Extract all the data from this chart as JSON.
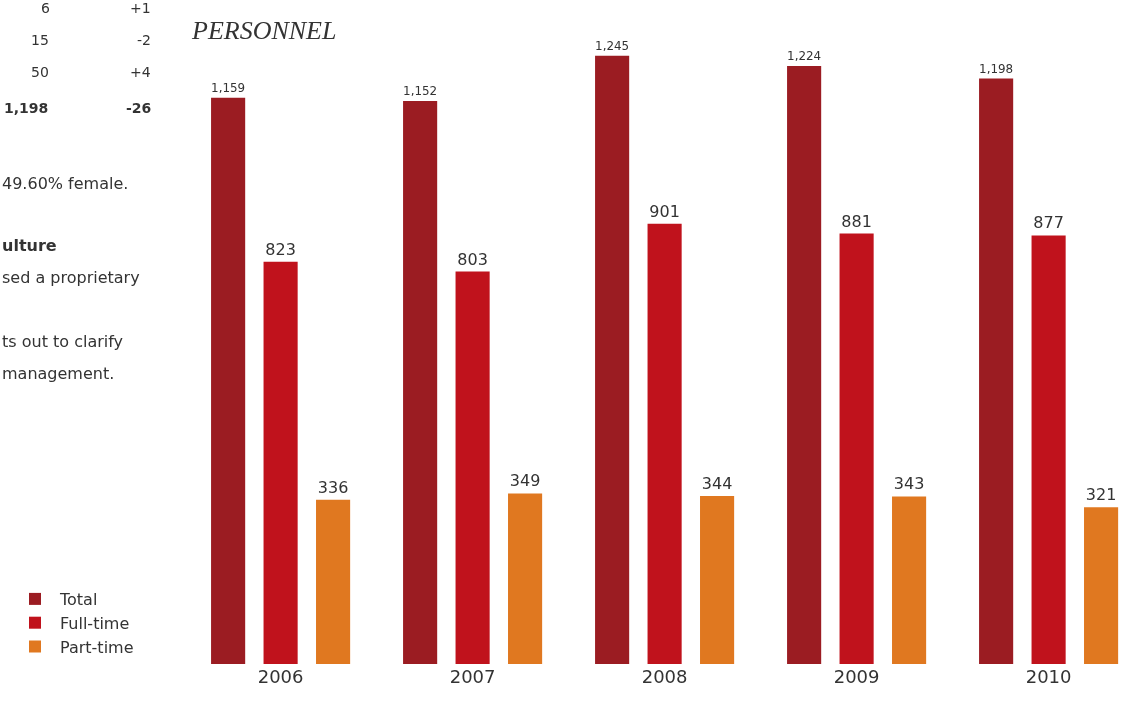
{
  "chart_data": {
    "type": "bar",
    "title": "PERSONNEL",
    "categories": [
      "2006",
      "2007",
      "2008",
      "2009",
      "2010"
    ],
    "series": [
      {
        "name": "Total",
        "color": "#9b1c22",
        "values": [
          1159,
          1152,
          1245,
          1224,
          1198
        ],
        "value_labels": [
          "1,159",
          "1,152",
          "1,245",
          "1,224",
          "1,198"
        ]
      },
      {
        "name": "Full-time",
        "color": "#c0121c",
        "values": [
          823,
          803,
          901,
          881,
          877
        ],
        "value_labels": [
          "823",
          "803",
          "901",
          "881",
          "877"
        ]
      },
      {
        "name": "Part-time",
        "color": "#e07820",
        "values": [
          336,
          349,
          344,
          343,
          321
        ],
        "value_labels": [
          "336",
          "349",
          "344",
          "343",
          "321"
        ]
      }
    ],
    "legend": "bottom left",
    "annotations": [
      "6",
      "+1",
      "15",
      "-2",
      "50",
      "+4",
      "1,198",
      "-26",
      "49.60% female.",
      "ulture",
      "sed a proprietary",
      "ts out to clarify",
      "management."
    ]
  }
}
